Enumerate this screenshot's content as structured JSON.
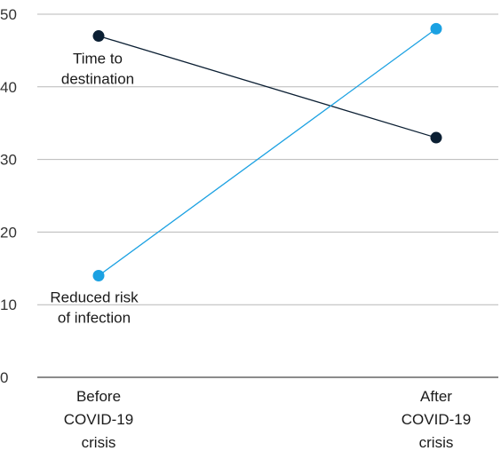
{
  "chart_data": {
    "type": "line",
    "categories": [
      [
        "Before",
        "COVID-19",
        "crisis"
      ],
      [
        "After",
        "COVID-19",
        "crisis"
      ]
    ],
    "ylim": [
      0,
      50
    ],
    "yticks": [
      0,
      10,
      20,
      30,
      40,
      50
    ],
    "grid": true,
    "series": [
      {
        "name": "Time to destination",
        "label_lines": [
          "Time to",
          "destination"
        ],
        "color": "#0b1f33",
        "values": [
          47,
          33
        ]
      },
      {
        "name": "Reduced risk of infection",
        "label_lines": [
          "Reduced risk",
          "of infection"
        ],
        "color": "#1ba1e2",
        "values": [
          14,
          48
        ]
      }
    ]
  }
}
